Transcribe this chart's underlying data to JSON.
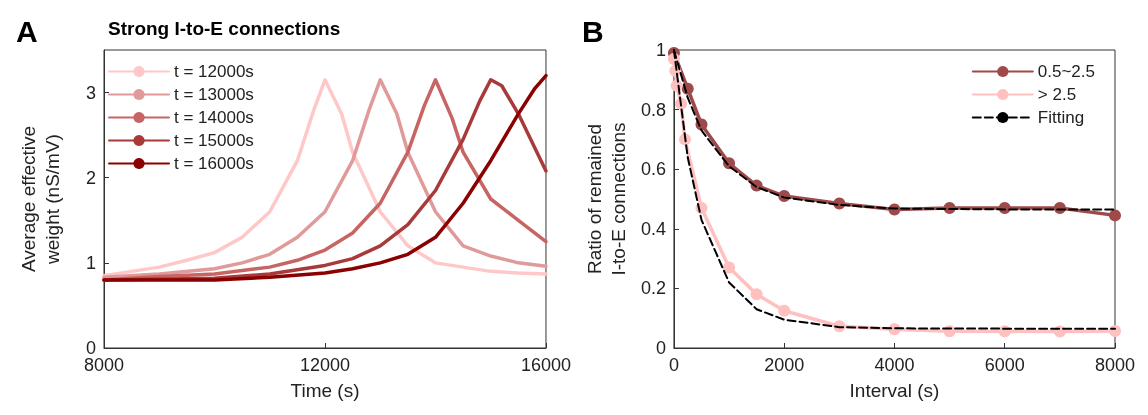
{
  "chart_data": [
    {
      "type": "line",
      "title": "Strong I-to-E connections",
      "xlabel": "Time (s)",
      "ylabel": "Average effective\nweight (nS/mV)",
      "annotations": [
        "A"
      ],
      "xlim": [
        8000,
        16000
      ],
      "xticks": [
        8000,
        12000,
        16000
      ],
      "ylim": [
        0,
        3.5
      ],
      "yticks": [
        0,
        1,
        2,
        3
      ],
      "legend": "top left",
      "marker": "none",
      "line_style": "solid",
      "series": [
        {
          "name": "t = 12000s",
          "color": "#ffc8c8",
          "x": [
            8000,
            8500,
            9000,
            9500,
            10000,
            10500,
            11000,
            11500,
            11800,
            12000,
            12300,
            12500,
            13000,
            13500,
            14000,
            14500,
            15000,
            15500,
            16000
          ],
          "values": [
            0.85,
            0.9,
            0.95,
            1.03,
            1.12,
            1.3,
            1.6,
            2.2,
            2.8,
            3.15,
            2.75,
            2.3,
            1.6,
            1.2,
            1.0,
            0.95,
            0.9,
            0.88,
            0.87
          ]
        },
        {
          "name": "t = 13000s",
          "color": "#e09a9a",
          "x": [
            8000,
            9000,
            10000,
            10500,
            11000,
            11500,
            12000,
            12500,
            12800,
            13000,
            13300,
            13500,
            14000,
            14500,
            15000,
            15500,
            16000
          ],
          "values": [
            0.83,
            0.87,
            0.93,
            1.0,
            1.1,
            1.3,
            1.6,
            2.2,
            2.8,
            3.15,
            2.75,
            2.3,
            1.6,
            1.2,
            1.08,
            1.0,
            0.96
          ]
        },
        {
          "name": "t = 14000s",
          "color": "#c86464",
          "x": [
            8000,
            9000,
            10000,
            11000,
            11500,
            12000,
            12500,
            13000,
            13500,
            13800,
            14000,
            14300,
            14500,
            15000,
            15500,
            16000
          ],
          "values": [
            0.8,
            0.84,
            0.87,
            0.95,
            1.03,
            1.15,
            1.35,
            1.7,
            2.3,
            2.85,
            3.15,
            2.7,
            2.3,
            1.75,
            1.5,
            1.25
          ]
        },
        {
          "name": "t = 15000s",
          "color": "#a83a3a",
          "x": [
            8000,
            10000,
            11000,
            12000,
            12500,
            13000,
            13500,
            14000,
            14500,
            14800,
            15000,
            15200,
            15500,
            16000
          ],
          "values": [
            0.8,
            0.82,
            0.87,
            0.97,
            1.05,
            1.2,
            1.45,
            1.85,
            2.45,
            2.9,
            3.15,
            3.08,
            2.75,
            2.08
          ]
        },
        {
          "name": "t = 16000s",
          "color": "#8b0000",
          "x": [
            8000,
            10000,
            11000,
            12000,
            12500,
            13000,
            13500,
            14000,
            14500,
            15000,
            15500,
            15800,
            16000
          ],
          "values": [
            0.8,
            0.8,
            0.83,
            0.88,
            0.93,
            1.0,
            1.1,
            1.3,
            1.7,
            2.2,
            2.75,
            3.05,
            3.2
          ]
        }
      ]
    },
    {
      "type": "line",
      "xlabel": "Interval (s)",
      "ylabel": "Ratio of remained\nI-to-E connections",
      "annotations": [
        "B"
      ],
      "xlim": [
        0,
        8000
      ],
      "xticks": [
        0,
        2000,
        4000,
        6000,
        8000
      ],
      "ylim": [
        0,
        1
      ],
      "yticks": [
        0,
        0.2,
        0.4,
        0.6,
        0.8,
        1
      ],
      "legend": "top right",
      "series": [
        {
          "name": "0.5~2.5",
          "color": "#9e4a4a",
          "marker": "circle",
          "line_style": "solid",
          "x": [
            0,
            250,
            500,
            1000,
            1500,
            2000,
            3000,
            4000,
            5000,
            6000,
            7000,
            8000
          ],
          "values": [
            0.99,
            0.87,
            0.75,
            0.62,
            0.545,
            0.51,
            0.485,
            0.465,
            0.47,
            0.47,
            0.47,
            0.445
          ]
        },
        {
          "name": "> 2.5",
          "color": "#ffc0c0",
          "marker": "circle",
          "line_style": "solid",
          "x": [
            0,
            25,
            50,
            130,
            200,
            500,
            1000,
            1500,
            2000,
            3000,
            4000,
            5000,
            6000,
            7000,
            8000
          ],
          "values": [
            0.97,
            0.93,
            0.88,
            0.82,
            0.7,
            0.47,
            0.27,
            0.18,
            0.125,
            0.073,
            0.063,
            0.056,
            0.056,
            0.055,
            0.057
          ]
        },
        {
          "name": "Fitting",
          "color": "#000000",
          "marker": "none",
          "line_style": "dashed",
          "x": [
            0,
            250,
            500,
            1000,
            1500,
            2000,
            3000,
            4000,
            6000,
            8000
          ],
          "values": [
            1.0,
            0.84,
            0.73,
            0.61,
            0.54,
            0.505,
            0.48,
            0.468,
            0.465,
            0.465
          ]
        },
        {
          "color": "#000000",
          "marker": "none",
          "line_style": "dashed",
          "x": [
            0,
            250,
            500,
            1000,
            1500,
            2000,
            3000,
            4000,
            6000,
            8000
          ],
          "values": [
            1.0,
            0.64,
            0.43,
            0.22,
            0.13,
            0.095,
            0.07,
            0.066,
            0.065,
            0.065
          ]
        }
      ]
    }
  ]
}
